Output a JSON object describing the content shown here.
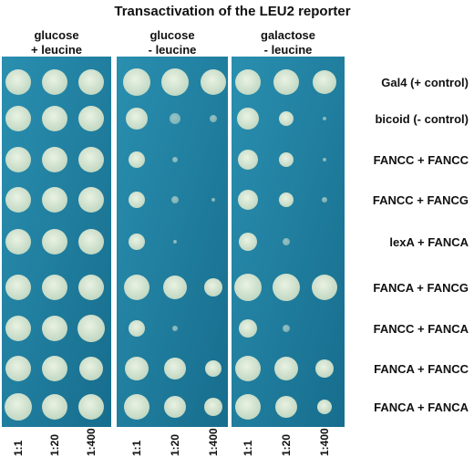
{
  "title": "Transactivation of the LEU2 reporter",
  "panels": [
    {
      "label_lines": [
        "glucose",
        "+ leucine"
      ],
      "dilutions": [
        "1:1",
        "1:20",
        "1:400"
      ]
    },
    {
      "label_lines": [
        "glucose",
        "- leucine"
      ],
      "dilutions": [
        "1:1",
        "1:20",
        "1:400"
      ]
    },
    {
      "label_lines": [
        "galactose",
        "- leucine"
      ],
      "dilutions": [
        "1:1",
        "1:20",
        "1:400"
      ]
    }
  ],
  "rows": [
    "Gal4 (+ control)",
    "bicoid (- control)",
    "FANCC + FANCC",
    "FANCC + FANCG",
    "lexA + FANCA",
    "FANCA + FANCG",
    "FANCC + FANCA",
    "FANCA + FANCC",
    "FANCA + FANCA"
  ]
}
